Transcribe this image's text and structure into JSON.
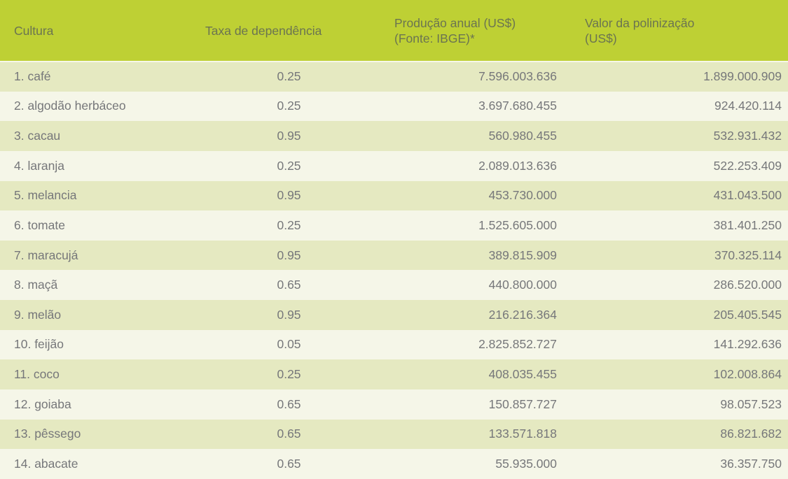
{
  "table": {
    "columns": [
      {
        "id": "cultura",
        "label": "Cultura"
      },
      {
        "id": "taxa_dependencia",
        "label": "Taxa de dependência"
      },
      {
        "id": "producao_anual",
        "label": "Produção anual (US$)\n(Fonte: IBGE)*"
      },
      {
        "id": "valor_polinizacao",
        "label": "Valor da polinização\n(US$)"
      }
    ],
    "rows": [
      [
        "1. café",
        "0.25",
        "7.596.003.636",
        "1.899.000.909"
      ],
      [
        "2. algodão herbáceo",
        "0.25",
        "3.697.680.455",
        "924.420.114"
      ],
      [
        "3. cacau",
        "0.95",
        "560.980.455",
        "532.931.432"
      ],
      [
        "4. laranja",
        "0.25",
        "2.089.013.636",
        "522.253.409"
      ],
      [
        "5. melancia",
        "0.95",
        "453.730.000",
        "431.043.500"
      ],
      [
        "6. tomate",
        "0.25",
        "1.525.605.000",
        "381.401.250"
      ],
      [
        "7. maracujá",
        "0.95",
        "389.815.909",
        "370.325.114"
      ],
      [
        "8. maçã",
        "0.65",
        "440.800.000",
        "286.520.000"
      ],
      [
        "9. melão",
        "0.95",
        "216.216.364",
        "205.405.545"
      ],
      [
        "10. feijão",
        "0.05",
        "2.825.852.727",
        "141.292.636"
      ],
      [
        "11. coco",
        "0.25",
        "408.035.455",
        "102.008.864"
      ],
      [
        "12. goiaba",
        "0.65",
        "150.857.727",
        "98.057.523"
      ],
      [
        "13. pêssego",
        "0.65",
        "133.571.818",
        "86.821.682"
      ],
      [
        "14. abacate",
        "0.65",
        "55.935.000",
        "36.357.750"
      ]
    ]
  },
  "colors": {
    "header_bg": "#bed034",
    "header_text": "#6b7451",
    "row_shaded_bg": "#e5e9c1",
    "row_light_bg": "#f5f6e8",
    "body_text": "#76777a"
  },
  "chart_data": {
    "type": "table",
    "columns": [
      "Cultura",
      "Taxa de dependência",
      "Produção anual (US$) (Fonte: IBGE)*",
      "Valor da polinização (US$)"
    ],
    "rows": [
      {
        "cultura": "café",
        "taxa_de_dependencia": 0.25,
        "producao_anual_usd": 7596003636,
        "valor_da_polinizacao_usd": 1899000909
      },
      {
        "cultura": "algodão herbáceo",
        "taxa_de_dependencia": 0.25,
        "producao_anual_usd": 3697680455,
        "valor_da_polinizacao_usd": 924420114
      },
      {
        "cultura": "cacau",
        "taxa_de_dependencia": 0.95,
        "producao_anual_usd": 560980455,
        "valor_da_polinizacao_usd": 532931432
      },
      {
        "cultura": "laranja",
        "taxa_de_dependencia": 0.25,
        "producao_anual_usd": 2089013636,
        "valor_da_polinizacao_usd": 522253409
      },
      {
        "cultura": "melancia",
        "taxa_de_dependencia": 0.95,
        "producao_anual_usd": 453730000,
        "valor_da_polinizacao_usd": 431043500
      },
      {
        "cultura": "tomate",
        "taxa_de_dependencia": 0.25,
        "producao_anual_usd": 1525605000,
        "valor_da_polinizacao_usd": 381401250
      },
      {
        "cultura": "maracujá",
        "taxa_de_dependencia": 0.95,
        "producao_anual_usd": 389815909,
        "valor_da_polinizacao_usd": 370325114
      },
      {
        "cultura": "maçã",
        "taxa_de_dependencia": 0.65,
        "producao_anual_usd": 440800000,
        "valor_da_polinizacao_usd": 286520000
      },
      {
        "cultura": "melão",
        "taxa_de_dependencia": 0.95,
        "producao_anual_usd": 216216364,
        "valor_da_polinizacao_usd": 205405545
      },
      {
        "cultura": "feijão",
        "taxa_de_dependencia": 0.05,
        "producao_anual_usd": 2825852727,
        "valor_da_polinizacao_usd": 141292636
      },
      {
        "cultura": "coco",
        "taxa_de_dependencia": 0.25,
        "producao_anual_usd": 408035455,
        "valor_da_polinizacao_usd": 102008864
      },
      {
        "cultura": "goiaba",
        "taxa_de_dependencia": 0.65,
        "producao_anual_usd": 150857727,
        "valor_da_polinizacao_usd": 98057523
      },
      {
        "cultura": "pêssego",
        "taxa_de_dependencia": 0.65,
        "producao_anual_usd": 133571818,
        "valor_da_polinizacao_usd": 86821682
      },
      {
        "cultura": "abacate",
        "taxa_de_dependencia": 0.65,
        "producao_anual_usd": 55935000,
        "valor_da_polinizacao_usd": 36357750
      }
    ]
  }
}
